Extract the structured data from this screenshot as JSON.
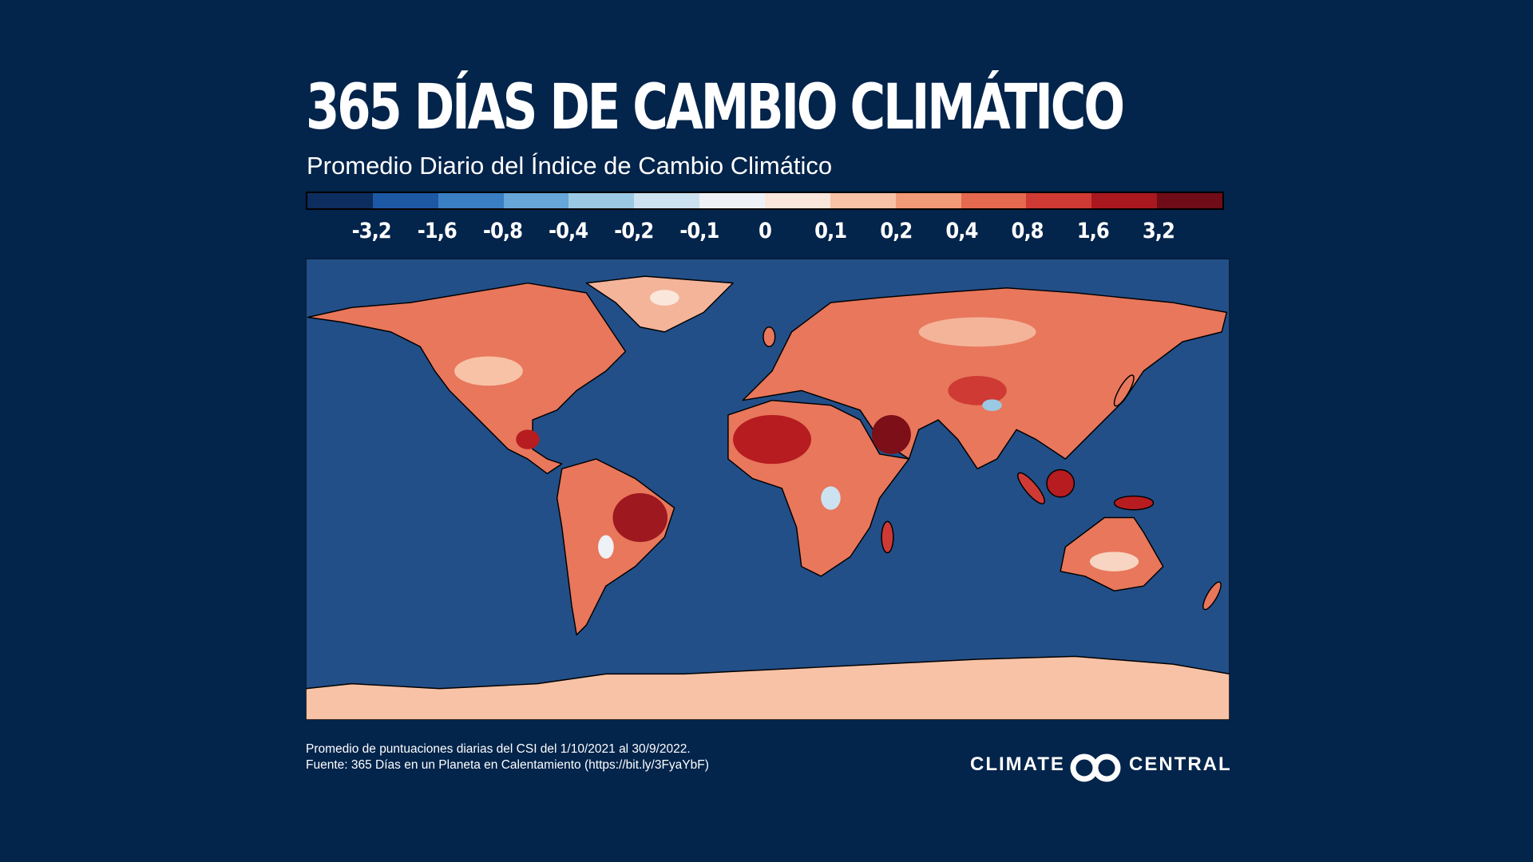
{
  "header": {
    "title": "365 DÍAS DE CAMBIO CLIMÁTICO",
    "subtitle": "Promedio Diario del Índice de Cambio Climático"
  },
  "legend": {
    "colors": [
      "#0c2d5e",
      "#1d58a5",
      "#3a7fc2",
      "#66a6d8",
      "#9bc9e3",
      "#cde2f0",
      "#eef2f6",
      "#fbe6db",
      "#f8c2a6",
      "#f39a76",
      "#e4694f",
      "#cf3a34",
      "#a9181f",
      "#6f0c17"
    ],
    "labels": [
      "-3,2",
      "-1,6",
      "-0,8",
      "-0,4",
      "-0,2",
      "-0,1",
      "0",
      "0,1",
      "0,2",
      "0,4",
      "0,8",
      "1,6",
      "3,2"
    ]
  },
  "footer": {
    "notes": [
      "Promedio de puntuaciones diarias del CSI del 1/10/2021 al 30/9/2022.",
      "Fuente: 365 Días en un Planeta en Calentamiento (https://bit.ly/3FyaYbF)"
    ],
    "logo": {
      "left": "CLIMATE",
      "right": "CENTRAL"
    }
  }
}
